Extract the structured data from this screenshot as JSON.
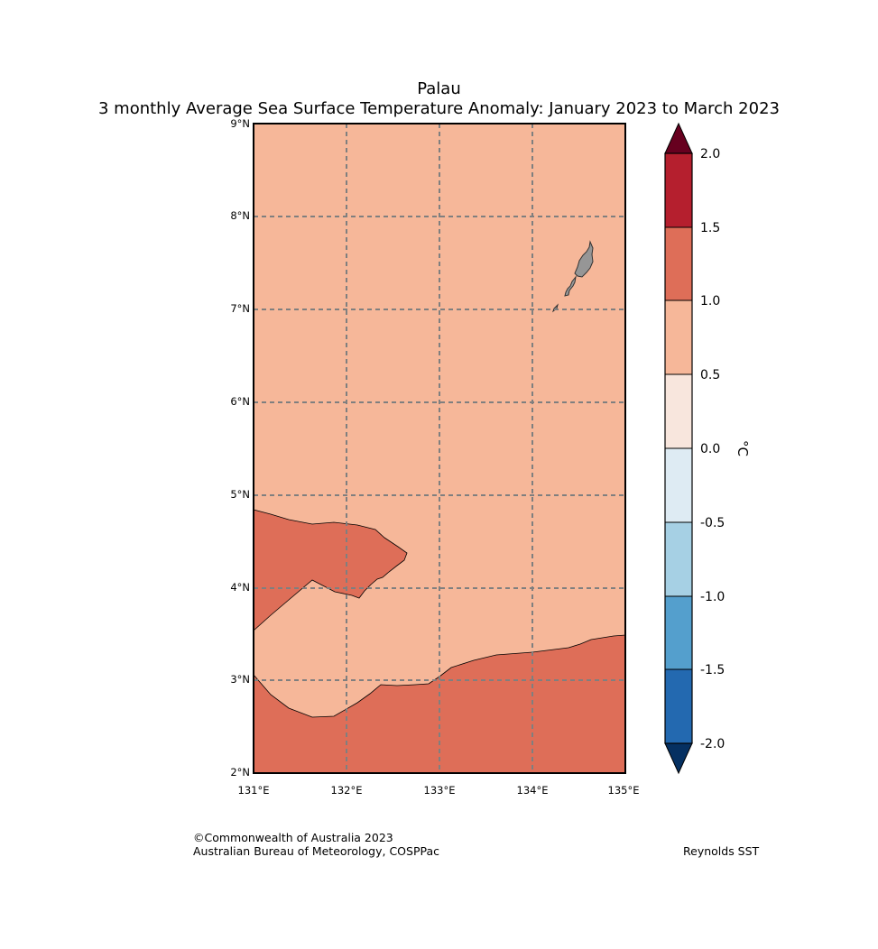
{
  "title": {
    "line1": "Palau",
    "line2": "3 monthly Average Sea Surface Temperature Anomaly: January 2023 to March 2023"
  },
  "map": {
    "lat_labels": [
      "9°N",
      "8°N",
      "7°N",
      "6°N",
      "5°N",
      "4°N",
      "3°N",
      "2°N"
    ],
    "lon_labels": [
      "131°E",
      "132°E",
      "133°E",
      "134°E",
      "135°E"
    ],
    "lat_range": [
      2,
      9
    ],
    "lon_range": [
      131,
      135
    ],
    "gridlines": "dashed",
    "land_color": "#969696",
    "background_fill": "#f6b799",
    "warm_fill": "#de6e58"
  },
  "colorbar": {
    "unit": "°C",
    "tick_labels": [
      "2.0",
      "1.5",
      "1.0",
      "0.5",
      "0.0",
      "-0.5",
      "-1.0",
      "-1.5",
      "-2.0"
    ],
    "colors": {
      "above_2.0": "#67001f",
      "1.5_to_2.0": "#b51f2e",
      "1.0_to_1.5": "#de6e58",
      "0.5_to_1.0": "#f6b799",
      "0.0_to_0.5": "#f8e6dd",
      "-0.5_to_0.0": "#deebf3",
      "-1.0_to_-0.5": "#a6d0e4",
      "-1.5_to_-1.0": "#549fcd",
      "-2.0_to_-1.5": "#2369b0",
      "below_-2.0": "#053061"
    }
  },
  "footer": {
    "copyright": "©Commonwealth of Australia 2023",
    "agency": "Australian Bureau of Meteorology, COSPPac",
    "dataset": "Reynolds SST"
  }
}
